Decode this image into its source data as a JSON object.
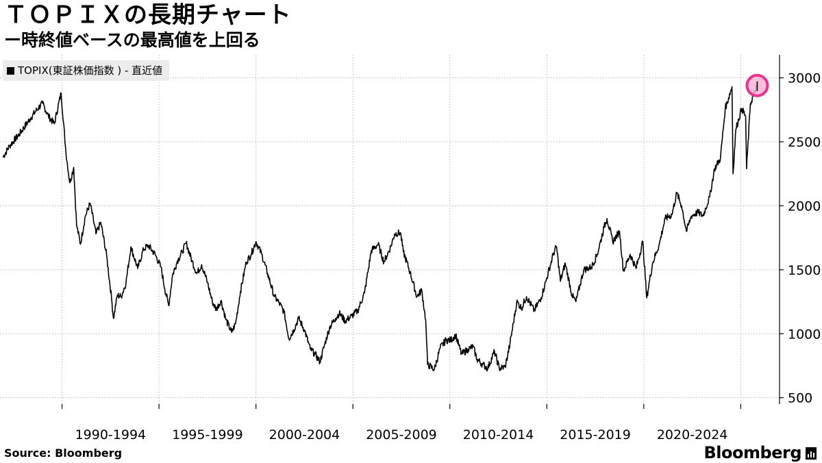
{
  "title": "ＴＯＰＩＸの長期チャート",
  "subtitle": "ー時終値ベースの最高値を上回る",
  "legend": {
    "label": "TOPIX(東証株価指数 ) - 直近値"
  },
  "source": "Source: Bloomberg",
  "brand": "Bloomberg",
  "colors": {
    "line": "#000000",
    "grid": "#b9b9b9",
    "highlight": "#e8338f",
    "highlight_fill": "#f7b4d3"
  },
  "chart_data": {
    "type": "line",
    "series": [
      {
        "name": "TOPIX(東証株価指数 ) - 直近値",
        "points": [
          [
            1986.95,
            2380
          ],
          [
            1987.3,
            2470
          ],
          [
            1987.8,
            2560
          ],
          [
            1988.4,
            2690
          ],
          [
            1988.8,
            2770
          ],
          [
            1989.0,
            2800
          ],
          [
            1989.3,
            2700
          ],
          [
            1989.6,
            2640
          ],
          [
            1989.95,
            2881
          ],
          [
            1990.2,
            2420
          ],
          [
            1990.4,
            2180
          ],
          [
            1990.6,
            2300
          ],
          [
            1990.75,
            1850
          ],
          [
            1990.95,
            1700
          ],
          [
            1991.2,
            1920
          ],
          [
            1991.45,
            2020
          ],
          [
            1991.75,
            1780
          ],
          [
            1992.0,
            1870
          ],
          [
            1992.3,
            1610
          ],
          [
            1992.55,
            1280
          ],
          [
            1992.65,
            1120
          ],
          [
            1992.85,
            1300
          ],
          [
            1993.05,
            1290
          ],
          [
            1993.3,
            1400
          ],
          [
            1993.55,
            1680
          ],
          [
            1993.9,
            1510
          ],
          [
            1994.2,
            1660
          ],
          [
            1994.45,
            1690
          ],
          [
            1994.8,
            1620
          ],
          [
            1995.1,
            1520
          ],
          [
            1995.3,
            1350
          ],
          [
            1995.5,
            1220
          ],
          [
            1995.7,
            1460
          ],
          [
            1995.95,
            1570
          ],
          [
            1996.2,
            1640
          ],
          [
            1996.4,
            1710
          ],
          [
            1996.7,
            1570
          ],
          [
            1996.95,
            1470
          ],
          [
            1997.2,
            1540
          ],
          [
            1997.5,
            1400
          ],
          [
            1997.75,
            1250
          ],
          [
            1997.95,
            1190
          ],
          [
            1998.2,
            1260
          ],
          [
            1998.45,
            1110
          ],
          [
            1998.75,
            1010
          ],
          [
            1998.95,
            1080
          ],
          [
            1999.2,
            1330
          ],
          [
            1999.5,
            1560
          ],
          [
            1999.75,
            1620
          ],
          [
            2000.0,
            1720
          ],
          [
            2000.3,
            1620
          ],
          [
            2000.6,
            1470
          ],
          [
            2000.95,
            1290
          ],
          [
            2001.2,
            1240
          ],
          [
            2001.45,
            1170
          ],
          [
            2001.7,
            960
          ],
          [
            2001.95,
            1030
          ],
          [
            2002.2,
            1120
          ],
          [
            2002.5,
            1030
          ],
          [
            2002.8,
            880
          ],
          [
            2003.05,
            840
          ],
          [
            2003.3,
            780
          ],
          [
            2003.55,
            920
          ],
          [
            2003.8,
            1050
          ],
          [
            2004.1,
            1120
          ],
          [
            2004.3,
            1160
          ],
          [
            2004.6,
            1100
          ],
          [
            2004.95,
            1140
          ],
          [
            2005.25,
            1180
          ],
          [
            2005.6,
            1320
          ],
          [
            2005.95,
            1650
          ],
          [
            2006.3,
            1700
          ],
          [
            2006.6,
            1560
          ],
          [
            2006.95,
            1680
          ],
          [
            2007.15,
            1780
          ],
          [
            2007.45,
            1790
          ],
          [
            2007.6,
            1640
          ],
          [
            2007.95,
            1480
          ],
          [
            2008.3,
            1290
          ],
          [
            2008.55,
            1340
          ],
          [
            2008.75,
            1110
          ],
          [
            2008.85,
            760
          ],
          [
            2009.2,
            720
          ],
          [
            2009.5,
            890
          ],
          [
            2009.8,
            950
          ],
          [
            2010.05,
            950
          ],
          [
            2010.3,
            990
          ],
          [
            2010.6,
            840
          ],
          [
            2010.95,
            880
          ],
          [
            2011.2,
            900
          ],
          [
            2011.4,
            800
          ],
          [
            2011.7,
            760
          ],
          [
            2011.95,
            730
          ],
          [
            2012.3,
            860
          ],
          [
            2012.55,
            730
          ],
          [
            2012.85,
            740
          ],
          [
            2013.1,
            920
          ],
          [
            2013.45,
            1250
          ],
          [
            2013.7,
            1200
          ],
          [
            2013.95,
            1290
          ],
          [
            2014.35,
            1180
          ],
          [
            2014.7,
            1280
          ],
          [
            2014.95,
            1410
          ],
          [
            2015.35,
            1630
          ],
          [
            2015.5,
            1680
          ],
          [
            2015.7,
            1410
          ],
          [
            2015.95,
            1550
          ],
          [
            2016.3,
            1300
          ],
          [
            2016.5,
            1250
          ],
          [
            2016.9,
            1500
          ],
          [
            2017.3,
            1520
          ],
          [
            2017.6,
            1620
          ],
          [
            2017.95,
            1830
          ],
          [
            2018.1,
            1900
          ],
          [
            2018.4,
            1720
          ],
          [
            2018.75,
            1800
          ],
          [
            2018.95,
            1490
          ],
          [
            2019.3,
            1620
          ],
          [
            2019.6,
            1510
          ],
          [
            2019.95,
            1720
          ],
          [
            2020.15,
            1280
          ],
          [
            2020.45,
            1550
          ],
          [
            2020.8,
            1700
          ],
          [
            2021.1,
            1900
          ],
          [
            2021.45,
            1930
          ],
          [
            2021.7,
            2100
          ],
          [
            2021.95,
            2000
          ],
          [
            2022.2,
            1800
          ],
          [
            2022.45,
            1920
          ],
          [
            2022.8,
            1950
          ],
          [
            2023.05,
            1920
          ],
          [
            2023.4,
            2070
          ],
          [
            2023.65,
            2290
          ],
          [
            2023.95,
            2370
          ],
          [
            2024.2,
            2760
          ],
          [
            2024.55,
            2930
          ],
          [
            2024.6,
            2250
          ],
          [
            2024.75,
            2600
          ],
          [
            2025.05,
            2760
          ],
          [
            2025.25,
            2700
          ],
          [
            2025.3,
            2290
          ],
          [
            2025.5,
            2800
          ],
          [
            2025.75,
            2900
          ],
          [
            2025.85,
            2940
          ]
        ]
      }
    ],
    "xlim": [
      1986.8,
      2027.0
    ],
    "ylim": [
      450,
      3180
    ],
    "x_tick_years": [
      1990,
      1995,
      2000,
      2005,
      2010,
      2015,
      2020,
      2025
    ],
    "x_period_labels": [
      "1990-1994",
      "1995-1999",
      "2000-2004",
      "2005-2009",
      "2010-2014",
      "2015-2019",
      "2020-2024"
    ],
    "y_ticks": [
      500,
      1000,
      1500,
      2000,
      2500,
      3000
    ],
    "y_tick_labels": [
      "500",
      "1000",
      "1500",
      "2000",
      "2500",
      "3000"
    ],
    "grid": true,
    "highlight_point": [
      2025.85,
      2940
    ]
  }
}
